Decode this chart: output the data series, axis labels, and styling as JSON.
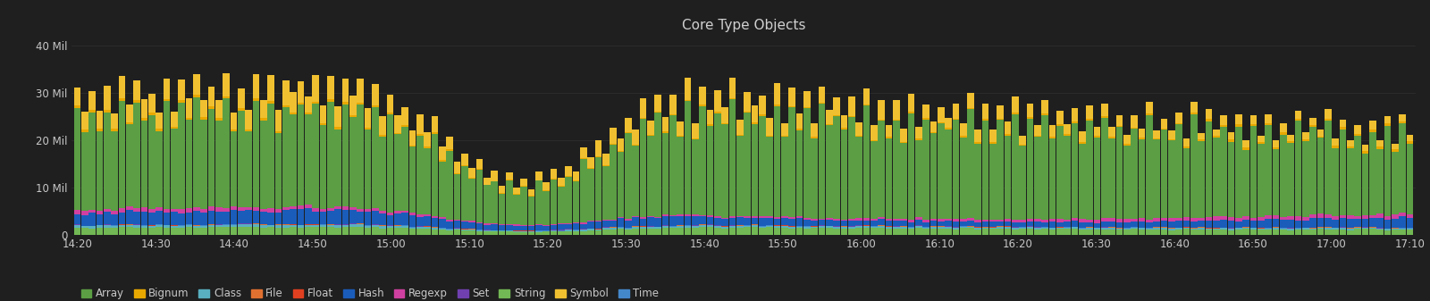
{
  "title": "Core Type Objects",
  "background_color": "#1f1f1f",
  "plot_bg_color": "#1f1f1f",
  "text_color": "#c8c8c8",
  "grid_color": "#2e2e2e",
  "title_color": "#d0d0d0",
  "ylim": [
    0,
    42000000
  ],
  "yticks": [
    0,
    10000000,
    20000000,
    30000000,
    40000000
  ],
  "ytick_labels": [
    "0",
    "10 Mil",
    "20 Mil",
    "30 Mil",
    "40 Mil"
  ],
  "xtick_labels": [
    "14:20",
    "14:30",
    "14:40",
    "14:50",
    "15:00",
    "15:10",
    "15:20",
    "15:30",
    "15:40",
    "15:50",
    "16:00",
    "16:10",
    "16:20",
    "16:30",
    "16:40",
    "16:50",
    "17:00",
    "17:10"
  ],
  "series": {
    "Array": {
      "color": "#5b9e44"
    },
    "Bignum": {
      "color": "#e8a800"
    },
    "Class": {
      "color": "#58b0c0"
    },
    "File": {
      "color": "#e07030"
    },
    "Float": {
      "color": "#e04020"
    },
    "Hash": {
      "color": "#1a5cba"
    },
    "Regexp": {
      "color": "#d040a0"
    },
    "Set": {
      "color": "#7040b0"
    },
    "String": {
      "color": "#72b854"
    },
    "Symbol": {
      "color": "#f0c030"
    },
    "Time": {
      "color": "#4488cc"
    }
  },
  "legend_order": [
    "Array",
    "Bignum",
    "Class",
    "File",
    "Float",
    "Hash",
    "Regexp",
    "Set",
    "String",
    "Symbol",
    "Time"
  ],
  "n_bars": 180
}
